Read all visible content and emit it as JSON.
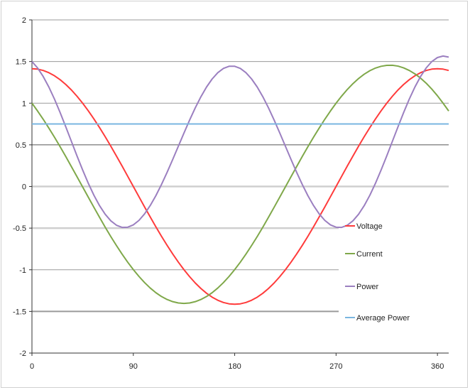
{
  "chart_data": {
    "type": "line",
    "title": "",
    "xlabel": "",
    "ylabel": "",
    "xlim": [
      0,
      370
    ],
    "ylim": [
      -2,
      2
    ],
    "x_ticks": [
      "0",
      "90",
      "180",
      "270",
      "360"
    ],
    "x_tick_values": [
      0,
      90,
      180,
      270,
      360
    ],
    "y_ticks": [
      "2",
      "1.5",
      "1",
      "0.5",
      "0",
      "-0.5",
      "-1",
      "-1.5",
      "-2"
    ],
    "y_tick_values": [
      2,
      1.5,
      1,
      0.5,
      0,
      -0.5,
      -1,
      -1.5,
      -2
    ],
    "grid": true,
    "legend_position": "right",
    "sample_step_degrees": 5,
    "series": [
      {
        "name": "Voltage",
        "color": "#ff3b3b",
        "values": [
          1.414,
          1.409,
          1.393,
          1.366,
          1.329,
          1.282,
          1.225,
          1.159,
          1.083,
          1.0,
          0.909,
          0.811,
          0.707,
          0.598,
          0.484,
          0.366,
          0.246,
          0.123,
          0.0,
          -0.123,
          -0.246,
          -0.366,
          -0.484,
          -0.598,
          -0.707,
          -0.811,
          -0.909,
          -1.0,
          -1.083,
          -1.159,
          -1.225,
          -1.282,
          -1.329,
          -1.366,
          -1.393,
          -1.409,
          -1.414,
          -1.409,
          -1.393,
          -1.366,
          -1.329,
          -1.282,
          -1.225,
          -1.159,
          -1.083,
          -1.0,
          -0.909,
          -0.811,
          -0.707,
          -0.598,
          -0.484,
          -0.366,
          -0.246,
          -0.123,
          0.0,
          0.123,
          0.246,
          0.366,
          0.484,
          0.598,
          0.707,
          0.811,
          0.909,
          1.0,
          1.083,
          1.159,
          1.225,
          1.282,
          1.329,
          1.366,
          1.393,
          1.409,
          1.414,
          1.409,
          1.393
        ]
      },
      {
        "name": "Current",
        "color": "#7fa84a",
        "values": [
          1.0,
          0.906,
          0.807,
          0.701,
          0.592,
          0.478,
          0.36,
          0.239,
          0.117,
          -0.005,
          -0.128,
          -0.25,
          -0.37,
          -0.488,
          -0.601,
          -0.709,
          -0.812,
          -0.909,
          -0.998,
          -1.08,
          -1.154,
          -1.219,
          -1.275,
          -1.321,
          -1.357,
          -1.383,
          -1.399,
          -1.404,
          -1.399,
          -1.383,
          -1.357,
          -1.321,
          -1.275,
          -1.219,
          -1.154,
          -1.08,
          -0.998,
          -0.909,
          -0.812,
          -0.709,
          -0.601,
          -0.488,
          -0.37,
          -0.25,
          -0.128,
          -0.005,
          0.117,
          0.239,
          0.36,
          0.478,
          0.592,
          0.701,
          0.807,
          0.906,
          1.0,
          1.086,
          1.165,
          1.235,
          1.296,
          1.348,
          1.39,
          1.422,
          1.443,
          1.454,
          1.455,
          1.445,
          1.424,
          1.393,
          1.352,
          1.301,
          1.24,
          1.169,
          1.089,
          1.0,
          0.906
        ]
      },
      {
        "name": "Power",
        "color": "#9b7fc0",
        "values": [
          1.5,
          1.423,
          1.32,
          1.194,
          1.049,
          0.888,
          0.717,
          0.542,
          0.367,
          0.198,
          0.039,
          -0.105,
          -0.23,
          -0.333,
          -0.412,
          -0.465,
          -0.491,
          -0.489,
          -0.461,
          -0.407,
          -0.329,
          -0.229,
          -0.111,
          0.024,
          0.17,
          0.325,
          0.484,
          0.643,
          0.798,
          0.944,
          1.077,
          1.194,
          1.291,
          1.366,
          1.417,
          1.443,
          1.443,
          1.417,
          1.366,
          1.291,
          1.194,
          1.077,
          0.944,
          0.798,
          0.643,
          0.484,
          0.325,
          0.17,
          0.024,
          -0.111,
          -0.229,
          -0.329,
          -0.407,
          -0.461,
          -0.489,
          -0.491,
          -0.465,
          -0.412,
          -0.333,
          -0.23,
          -0.105,
          0.039,
          0.198,
          0.367,
          0.542,
          0.717,
          0.888,
          1.049,
          1.194,
          1.32,
          1.423,
          1.5,
          1.548,
          1.566,
          1.553
        ]
      },
      {
        "name": "Average Power",
        "color": "#7ab6e0",
        "values": [
          0.75,
          0.75,
          0.75,
          0.75,
          0.75,
          0.75,
          0.75,
          0.75,
          0.75,
          0.75,
          0.75,
          0.75,
          0.75,
          0.75,
          0.75,
          0.75,
          0.75,
          0.75,
          0.75,
          0.75,
          0.75,
          0.75,
          0.75,
          0.75,
          0.75,
          0.75,
          0.75,
          0.75,
          0.75,
          0.75,
          0.75,
          0.75,
          0.75,
          0.75,
          0.75,
          0.75,
          0.75,
          0.75,
          0.75,
          0.75,
          0.75,
          0.75,
          0.75,
          0.75,
          0.75,
          0.75,
          0.75,
          0.75,
          0.75,
          0.75,
          0.75,
          0.75,
          0.75,
          0.75,
          0.75,
          0.75,
          0.75,
          0.75,
          0.75,
          0.75,
          0.75,
          0.75,
          0.75,
          0.75,
          0.75,
          0.75,
          0.75,
          0.75,
          0.75,
          0.75,
          0.75,
          0.75,
          0.75,
          0.75,
          0.75
        ]
      }
    ]
  }
}
